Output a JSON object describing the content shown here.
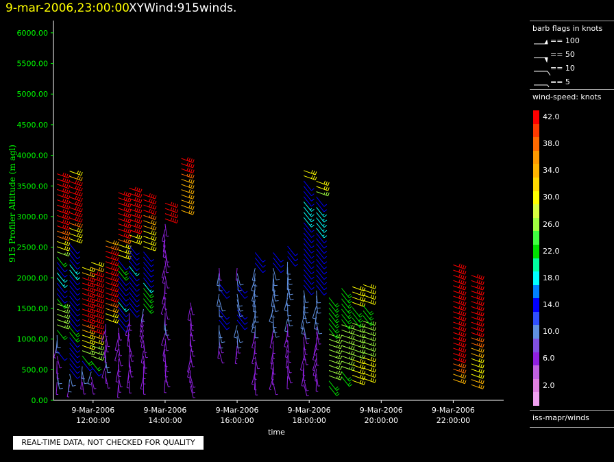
{
  "header": {
    "time": "9-mar-2006,23:00:00",
    "title": "XYWind:915winds."
  },
  "legend": {
    "barb_title": "barb flags in knots",
    "barb_items": [
      {
        "label": "== 100",
        "icon": "pennant-barb-icon"
      },
      {
        "label": "== 50",
        "icon": "pennant-barb-icon"
      },
      {
        "label": "== 10",
        "icon": "full-barb-icon"
      },
      {
        "label": "== 5",
        "icon": "half-barb-icon"
      }
    ],
    "colorbar_title": "wind-speed: knots",
    "colorbar": [
      {
        "label": "42.0",
        "color": "#ff0000"
      },
      {
        "label": "",
        "color": "#ff3a00"
      },
      {
        "label": "38.0",
        "color": "#ff6a00"
      },
      {
        "label": "",
        "color": "#ff9a00"
      },
      {
        "label": "34.0",
        "color": "#ffb400"
      },
      {
        "label": "",
        "color": "#ffd800"
      },
      {
        "label": "30.0",
        "color": "#ffff00"
      },
      {
        "label": "",
        "color": "#d8ff40"
      },
      {
        "label": "26.0",
        "color": "#a0ff40"
      },
      {
        "label": "",
        "color": "#40ff40"
      },
      {
        "label": "22.0",
        "color": "#00e000"
      },
      {
        "label": "",
        "color": "#00ffa0"
      },
      {
        "label": "18.0",
        "color": "#00ffff"
      },
      {
        "label": "",
        "color": "#0080ff"
      },
      {
        "label": "14.0",
        "color": "#0000ff"
      },
      {
        "label": "",
        "color": "#3050ff"
      },
      {
        "label": "10.0",
        "color": "#6090e0"
      },
      {
        "label": "",
        "color": "#8050e0"
      },
      {
        "label": "6.0",
        "color": "#9020e0"
      },
      {
        "label": "",
        "color": "#c060e0"
      },
      {
        "label": "2.0",
        "color": "#e080e0"
      },
      {
        "label": "",
        "color": "#f0a0f0"
      }
    ],
    "source": "iss-mapr/winds"
  },
  "qc_notice": "REAL-TIME DATA, NOT CHECKED FOR QUALITY",
  "chart_data": {
    "type": "scatter",
    "title": "XYWind:915winds.",
    "xlabel": "time",
    "ylabel": "915 Profiler Altitude (m agl)",
    "ylim": [
      0,
      6200
    ],
    "xlim_hours": [
      10.9,
      23.4
    ],
    "y_ticks": [
      "0.00",
      "500.00",
      "1000.00",
      "1500.00",
      "2000.00",
      "2500.00",
      "3000.00",
      "3500.00",
      "4000.00",
      "4500.00",
      "5000.00",
      "5500.00",
      "6000.00"
    ],
    "x_ticks": [
      {
        "date": "9-Mar-2006",
        "time": "12:00:00",
        "hour": 12
      },
      {
        "date": "9-Mar-2006",
        "time": "14:00:00",
        "hour": 14
      },
      {
        "date": "9-Mar-2006",
        "time": "16:00:00",
        "hour": 16
      },
      {
        "date": "9-Mar-2006",
        "time": "18:00:00",
        "hour": 18
      },
      {
        "date": "9-Mar-2006",
        "time": "20:00:00",
        "hour": 20
      },
      {
        "date": "9-Mar-2006",
        "time": "22:00:00",
        "hour": 22
      }
    ],
    "profiles": [
      {
        "hour": 11.0,
        "speed": [
          6,
          10,
          10,
          6,
          6,
          6,
          14,
          6,
          10,
          10,
          22,
          26,
          26,
          26,
          26,
          26,
          22,
          14,
          14,
          14,
          18,
          18,
          14,
          14,
          22,
          26,
          30,
          30,
          38,
          38,
          42,
          42,
          42,
          42,
          42,
          42,
          42,
          42,
          42,
          42,
          42
        ]
      },
      {
        "hour": 11.35,
        "speed": [
          6,
          10,
          10,
          14,
          14,
          14,
          14,
          14,
          14,
          14,
          22,
          22,
          14,
          14,
          14,
          14,
          14,
          14,
          14,
          14,
          14,
          14,
          18,
          18,
          14,
          14,
          14,
          14,
          30,
          30,
          30,
          38,
          42,
          42,
          42,
          42,
          42,
          42,
          42,
          42,
          34,
          30
        ]
      },
      {
        "hour": 11.7,
        "speed": [
          6,
          6,
          10,
          10,
          14,
          22,
          26,
          30,
          30,
          30,
          34,
          38,
          42,
          42,
          42,
          42,
          42,
          42,
          42,
          42,
          42,
          34,
          30
        ]
      },
      {
        "hour": 11.95,
        "speed": [
          6,
          6,
          10,
          14,
          22,
          26,
          26,
          26,
          30,
          34,
          42,
          42,
          42,
          42,
          42,
          42,
          42,
          42,
          42,
          42,
          42,
          42,
          34,
          30
        ]
      },
      {
        "hour": 12.35,
        "speed": [
          6,
          6,
          6,
          10,
          10,
          6,
          6,
          6,
          6,
          6,
          6,
          30,
          30,
          34,
          38,
          42,
          42,
          42,
          42,
          42,
          42,
          42,
          42,
          42,
          42,
          38,
          34
        ]
      },
      {
        "hour": 12.7,
        "speed": [
          6,
          6,
          6,
          6,
          6,
          6,
          6,
          6,
          6,
          6,
          6,
          6,
          14,
          14,
          14,
          14,
          18,
          14,
          14,
          14,
          14,
          14,
          22,
          22,
          14,
          30,
          30,
          30,
          38,
          42,
          42,
          42,
          42,
          42,
          42,
          42,
          42,
          42
        ]
      },
      {
        "hour": 13.0,
        "speed": [
          6,
          6,
          6,
          6,
          6,
          6,
          6,
          6,
          6,
          6,
          6,
          6,
          6,
          6,
          14,
          14,
          14,
          14,
          14,
          14,
          14,
          14,
          18,
          14,
          14,
          14,
          14,
          30,
          30,
          42,
          42,
          42,
          42,
          42,
          42,
          42,
          42,
          42
        ]
      },
      {
        "hour": 13.4,
        "speed": [
          6,
          6,
          6,
          6,
          6,
          6,
          6,
          6,
          6,
          6,
          6,
          6,
          6,
          6,
          10,
          22,
          22,
          22,
          22,
          18,
          14,
          14,
          14,
          14,
          14,
          14,
          30,
          30,
          30,
          30,
          34,
          34,
          38,
          42,
          42,
          42,
          42
        ]
      },
      {
        "hour": 14.0,
        "speed": [
          6,
          6,
          6,
          6,
          6,
          6,
          6,
          6,
          6,
          6,
          6,
          10,
          10,
          6,
          6,
          6,
          6,
          6,
          6,
          6,
          6,
          6,
          6,
          6,
          6,
          6,
          6,
          6,
          6,
          6,
          6,
          42,
          42,
          42,
          42
        ]
      },
      {
        "hour": 14.45,
        "speed": [
          34,
          34,
          34,
          34,
          34,
          34,
          34,
          38,
          42,
          42,
          42
        ]
      },
      {
        "hour": 14.7,
        "speed": [
          6,
          6,
          6,
          6,
          6,
          6,
          6,
          6,
          6,
          6,
          6,
          6,
          6,
          6,
          6,
          6,
          6
        ]
      },
      {
        "hour": 15.5,
        "speed": [
          6,
          6,
          6,
          10,
          10,
          10,
          14,
          14,
          14,
          10,
          10,
          10,
          14,
          14,
          10,
          10,
          6
        ]
      },
      {
        "hour": 16.0,
        "speed": [
          6,
          6,
          6,
          10,
          10,
          10,
          14,
          14,
          14,
          10,
          10,
          10,
          14,
          14,
          10,
          10,
          6
        ]
      },
      {
        "hour": 16.5,
        "speed": [
          6,
          6,
          6,
          6,
          6,
          6,
          6,
          6,
          6,
          6,
          6,
          10,
          10,
          10,
          10,
          10,
          10,
          10,
          10,
          10,
          10,
          10,
          10,
          14,
          14,
          14
        ]
      },
      {
        "hour": 17.0,
        "speed": [
          6,
          6,
          6,
          6,
          6,
          6,
          6,
          6,
          6,
          6,
          6,
          10,
          10,
          10,
          10,
          10,
          10,
          10,
          10,
          10,
          10,
          10,
          10,
          14,
          14,
          14
        ]
      },
      {
        "hour": 17.4,
        "speed": [
          6,
          6,
          6,
          6,
          6,
          6,
          6,
          6,
          6,
          6,
          6,
          10,
          10,
          10,
          10,
          10,
          10,
          10,
          10,
          10,
          10,
          10,
          10,
          14,
          14,
          14
        ]
      },
      {
        "hour": 17.85,
        "speed": [
          6,
          6,
          6,
          6,
          6,
          6,
          6,
          6,
          6,
          6,
          6,
          10,
          10,
          10,
          10,
          10,
          10,
          10,
          10,
          14,
          14,
          14,
          14,
          14,
          14,
          14,
          14,
          14,
          14,
          14,
          14,
          14,
          18,
          18,
          18,
          18,
          14,
          14,
          14,
          14,
          30,
          30
        ]
      },
      {
        "hour": 18.2,
        "speed": [
          6,
          6,
          6,
          6,
          6,
          6,
          6,
          6,
          6,
          6,
          6,
          10,
          10,
          10,
          10,
          10,
          10,
          10,
          14,
          14,
          14,
          14,
          14,
          14,
          14,
          14,
          14,
          14,
          14,
          18,
          18,
          18,
          18,
          18,
          14,
          14,
          26,
          30,
          30
        ]
      },
      {
        "hour": 18.55,
        "speed": [
          22,
          22,
          26,
          26,
          26,
          26,
          26,
          26,
          26,
          26,
          26,
          22,
          22,
          22,
          22,
          22,
          22,
          22
        ]
      },
      {
        "hour": 18.9,
        "speed": [
          22,
          22,
          26,
          26,
          26,
          26,
          26,
          26,
          26,
          26,
          26,
          22,
          22,
          22,
          22,
          22,
          22,
          22
        ]
      },
      {
        "hour": 19.2,
        "speed": [
          30,
          30,
          30,
          30,
          30,
          26,
          26,
          26,
          26,
          26,
          26,
          26,
          22,
          22,
          22,
          30,
          30,
          30,
          30
        ]
      },
      {
        "hour": 19.5,
        "speed": [
          30,
          30,
          30,
          30,
          30,
          26,
          26,
          26,
          26,
          26,
          26,
          26,
          22,
          22,
          22,
          30,
          30,
          30,
          30
        ]
      },
      {
        "hour": 22.0,
        "speed": [
          34,
          34,
          38,
          38,
          42,
          42,
          42,
          42,
          42,
          42,
          42,
          42,
          42,
          42,
          42,
          42,
          42,
          42,
          42,
          42,
          42,
          42,
          42
        ]
      },
      {
        "hour": 22.5,
        "speed": [
          34,
          34,
          30,
          30,
          30,
          30,
          34,
          34,
          38,
          38,
          42,
          42,
          42,
          42,
          42,
          42,
          42,
          42,
          42,
          42,
          42,
          42
        ]
      }
    ]
  }
}
